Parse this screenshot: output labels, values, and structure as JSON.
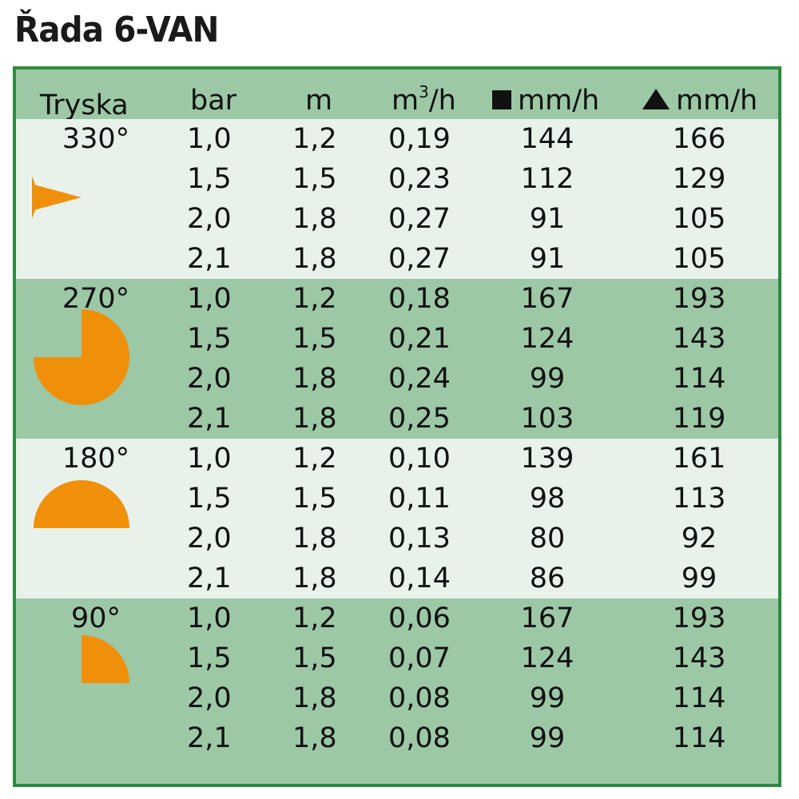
{
  "title": "Řada 6-VAN",
  "headers": {
    "nozzle": "Tryska",
    "bar": "bar",
    "m": "m",
    "flow_base": "m",
    "flow_sup": "3",
    "flow_tail": "/h",
    "square": "mm/h",
    "triangle": "mm/h"
  },
  "groups": [
    {
      "angle": "330°",
      "icon": "nozzle-330-icon",
      "rows": [
        {
          "bar": "1,0",
          "m": "1,2",
          "flow": "0,19",
          "square": "144",
          "triangle": "166"
        },
        {
          "bar": "1,5",
          "m": "1,5",
          "flow": "0,23",
          "square": "112",
          "triangle": "129"
        },
        {
          "bar": "2,0",
          "m": "1,8",
          "flow": "0,27",
          "square": "91",
          "triangle": "105"
        },
        {
          "bar": "2,1",
          "m": "1,8",
          "flow": "0,27",
          "square": "91",
          "triangle": "105"
        }
      ]
    },
    {
      "angle": "270°",
      "icon": "nozzle-270-icon",
      "rows": [
        {
          "bar": "1,0",
          "m": "1,2",
          "flow": "0,18",
          "square": "167",
          "triangle": "193"
        },
        {
          "bar": "1,5",
          "m": "1,5",
          "flow": "0,21",
          "square": "124",
          "triangle": "143"
        },
        {
          "bar": "2,0",
          "m": "1,8",
          "flow": "0,24",
          "square": "99",
          "triangle": "114"
        },
        {
          "bar": "2,1",
          "m": "1,8",
          "flow": "0,25",
          "square": "103",
          "triangle": "119"
        }
      ]
    },
    {
      "angle": "180°",
      "icon": "nozzle-180-icon",
      "rows": [
        {
          "bar": "1,0",
          "m": "1,2",
          "flow": "0,10",
          "square": "139",
          "triangle": "161"
        },
        {
          "bar": "1,5",
          "m": "1,5",
          "flow": "0,11",
          "square": "98",
          "triangle": "113"
        },
        {
          "bar": "2,0",
          "m": "1,8",
          "flow": "0,13",
          "square": "80",
          "triangle": "92"
        },
        {
          "bar": "2,1",
          "m": "1,8",
          "flow": "0,14",
          "square": "86",
          "triangle": "99"
        }
      ]
    },
    {
      "angle": "90°",
      "icon": "nozzle-90-icon",
      "rows": [
        {
          "bar": "1,0",
          "m": "1,2",
          "flow": "0,06",
          "square": "167",
          "triangle": "193"
        },
        {
          "bar": "1,5",
          "m": "1,5",
          "flow": "0,07",
          "square": "124",
          "triangle": "143"
        },
        {
          "bar": "2,0",
          "m": "1,8",
          "flow": "0,08",
          "square": "99",
          "triangle": "114"
        },
        {
          "bar": "2,1",
          "m": "1,8",
          "flow": "0,08",
          "square": "99",
          "triangle": "114"
        }
      ]
    }
  ],
  "colors": {
    "border": "#2d8a3e",
    "dark_band": "#9cc8a6",
    "light_band": "#e8f2ea",
    "nozzle_fill": "#f0900a"
  }
}
